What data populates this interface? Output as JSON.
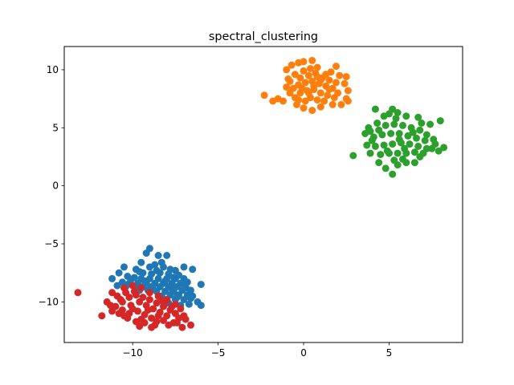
{
  "chart_data": {
    "type": "scatter",
    "title": "spectral_clustering",
    "xlabel": "",
    "ylabel": "",
    "xlim": [
      -14.0,
      9.3
    ],
    "ylim": [
      -13.5,
      12.0
    ],
    "xticks": [
      -10,
      -5,
      0,
      5
    ],
    "yticks": [
      -10,
      -5,
      0,
      5,
      10
    ],
    "xtick_labels": [
      "−10",
      "−5",
      "0",
      "5"
    ],
    "ytick_labels": [
      "−10",
      "−5",
      "0",
      "5",
      "10"
    ],
    "grid": false,
    "legend": "none",
    "series": [
      {
        "color": "#1f77b4",
        "points": [
          [
            -9.0,
            -5.4
          ],
          [
            -9.2,
            -5.8
          ],
          [
            -8.5,
            -6.0
          ],
          [
            -8.0,
            -6.0
          ],
          [
            -8.3,
            -6.6
          ],
          [
            -9.5,
            -6.6
          ],
          [
            -10.5,
            -7.0
          ],
          [
            -7.0,
            -7.0
          ],
          [
            -6.5,
            -7.2
          ],
          [
            -7.5,
            -7.3
          ],
          [
            -10.8,
            -7.5
          ],
          [
            -11.2,
            -8.0
          ],
          [
            -6.0,
            -8.5
          ],
          [
            -6.5,
            -9.5
          ],
          [
            -6.2,
            -10.0
          ],
          [
            -6.0,
            -10.3
          ],
          [
            -9.8,
            -7.2
          ],
          [
            -9.0,
            -7.0
          ],
          [
            -8.7,
            -6.8
          ],
          [
            -8.2,
            -7.0
          ],
          [
            -7.8,
            -7.2
          ],
          [
            -9.4,
            -7.5
          ],
          [
            -8.9,
            -7.6
          ],
          [
            -8.4,
            -7.5
          ],
          [
            -7.9,
            -7.6
          ],
          [
            -7.3,
            -7.7
          ],
          [
            -10.3,
            -7.8
          ],
          [
            -9.9,
            -7.9
          ],
          [
            -9.5,
            -8.0
          ],
          [
            -9.0,
            -8.0
          ],
          [
            -8.5,
            -8.0
          ],
          [
            -8.0,
            -8.0
          ],
          [
            -7.5,
            -8.0
          ],
          [
            -7.0,
            -8.0
          ],
          [
            -6.8,
            -8.3
          ],
          [
            -7.2,
            -8.4
          ],
          [
            -7.7,
            -8.4
          ],
          [
            -8.2,
            -8.4
          ],
          [
            -8.7,
            -8.4
          ],
          [
            -9.2,
            -8.4
          ],
          [
            -9.7,
            -8.4
          ],
          [
            -10.2,
            -8.4
          ],
          [
            -10.6,
            -8.3
          ],
          [
            -10.9,
            -8.6
          ],
          [
            -10.4,
            -8.7
          ],
          [
            -9.9,
            -8.7
          ],
          [
            -9.4,
            -8.7
          ],
          [
            -8.9,
            -8.7
          ],
          [
            -8.4,
            -8.7
          ],
          [
            -7.9,
            -8.7
          ],
          [
            -7.4,
            -8.7
          ],
          [
            -6.9,
            -8.7
          ],
          [
            -6.6,
            -9.0
          ],
          [
            -7.1,
            -9.0
          ],
          [
            -7.6,
            -9.1
          ],
          [
            -8.1,
            -9.1
          ],
          [
            -8.6,
            -9.1
          ],
          [
            -9.1,
            -9.0
          ],
          [
            -9.6,
            -9.0
          ],
          [
            -6.8,
            -9.4
          ],
          [
            -7.3,
            -9.4
          ],
          [
            -7.8,
            -9.4
          ],
          [
            -8.3,
            -9.5
          ],
          [
            -7.0,
            -9.8
          ],
          [
            -7.5,
            -9.8
          ],
          [
            -6.7,
            -10.2
          ],
          [
            -7.2,
            -10.3
          ],
          [
            -8.0,
            -9.8
          ],
          [
            -9.6,
            -7.4
          ],
          [
            -8.6,
            -7.3
          ],
          [
            -7.6,
            -7.9
          ],
          [
            -10.1,
            -8.1
          ],
          [
            -9.3,
            -8.2
          ],
          [
            -8.1,
            -8.2
          ],
          [
            -6.9,
            -8.8
          ],
          [
            -7.7,
            -8.9
          ],
          [
            -8.8,
            -8.9
          ],
          [
            -7.4,
            -9.6
          ],
          [
            -6.6,
            -9.7
          ],
          [
            -7.9,
            -10.1
          ]
        ]
      },
      {
        "color": "#ff7f0e",
        "points": [
          [
            -2.3,
            7.8
          ],
          [
            -1.5,
            7.5
          ],
          [
            -1.2,
            7.3
          ],
          [
            -1.8,
            7.3
          ],
          [
            -1.0,
            8.5
          ],
          [
            -0.8,
            9.0
          ],
          [
            -0.7,
            10.4
          ],
          [
            -0.3,
            10.6
          ],
          [
            -1.0,
            10.0
          ],
          [
            0.0,
            10.7
          ],
          [
            0.5,
            10.8
          ],
          [
            0.8,
            10.2
          ],
          [
            1.3,
            9.6
          ],
          [
            1.9,
            10.3
          ],
          [
            2.5,
            9.4
          ],
          [
            2.4,
            8.8
          ],
          [
            2.6,
            8.2
          ],
          [
            2.5,
            7.5
          ],
          [
            2.2,
            7.0
          ],
          [
            2.6,
            7.3
          ],
          [
            1.7,
            7.0
          ],
          [
            1.0,
            6.8
          ],
          [
            0.5,
            6.5
          ],
          [
            0.0,
            6.7
          ],
          [
            -0.4,
            7.0
          ],
          [
            -0.5,
            7.6
          ],
          [
            -0.2,
            8.0
          ],
          [
            0.2,
            8.2
          ],
          [
            0.6,
            8.3
          ],
          [
            1.0,
            8.0
          ],
          [
            1.4,
            7.8
          ],
          [
            0.4,
            7.6
          ],
          [
            0.8,
            7.4
          ],
          [
            1.2,
            7.3
          ],
          [
            -0.6,
            8.4
          ],
          [
            -0.3,
            8.7
          ],
          [
            0.1,
            8.9
          ],
          [
            0.5,
            9.0
          ],
          [
            0.9,
            8.8
          ],
          [
            1.3,
            8.6
          ],
          [
            1.7,
            8.4
          ],
          [
            -0.8,
            8.0
          ],
          [
            -0.2,
            9.3
          ],
          [
            0.3,
            9.5
          ],
          [
            0.7,
            9.7
          ],
          [
            1.1,
            9.3
          ],
          [
            1.5,
            9.1
          ],
          [
            1.9,
            8.9
          ],
          [
            -0.5,
            9.6
          ],
          [
            0.0,
            9.9
          ],
          [
            0.4,
            10.1
          ],
          [
            1.6,
            9.8
          ],
          [
            2.0,
            8.0
          ],
          [
            1.8,
            7.6
          ],
          [
            0.1,
            7.3
          ],
          [
            -0.3,
            7.4
          ],
          [
            0.6,
            8.6
          ],
          [
            1.0,
            9.1
          ],
          [
            -0.1,
            8.4
          ],
          [
            0.3,
            8.0
          ],
          [
            1.5,
            8.3
          ],
          [
            0.8,
            9.4
          ],
          [
            -0.9,
            9.2
          ],
          [
            2.1,
            9.5
          ]
        ]
      },
      {
        "color": "#2ca02c",
        "points": [
          [
            4.2,
            6.6
          ],
          [
            5.2,
            6.6
          ],
          [
            5.0,
            6.2
          ],
          [
            5.5,
            6.3
          ],
          [
            6.0,
            6.0
          ],
          [
            6.7,
            5.9
          ],
          [
            7.4,
            5.3
          ],
          [
            8.0,
            5.6
          ],
          [
            7.7,
            3.6
          ],
          [
            8.2,
            3.3
          ],
          [
            7.5,
            3.2
          ],
          [
            7.9,
            3.0
          ],
          [
            6.8,
            2.5
          ],
          [
            6.5,
            2.0
          ],
          [
            6.0,
            2.0
          ],
          [
            5.5,
            1.8
          ],
          [
            4.8,
            1.5
          ],
          [
            5.2,
            1.0
          ],
          [
            4.4,
            2.0
          ],
          [
            3.9,
            2.8
          ],
          [
            2.9,
            2.6
          ],
          [
            3.7,
            3.5
          ],
          [
            3.6,
            4.5
          ],
          [
            3.8,
            5.0
          ],
          [
            4.3,
            5.4
          ],
          [
            4.8,
            5.2
          ],
          [
            5.3,
            5.3
          ],
          [
            5.8,
            5.2
          ],
          [
            6.3,
            5.0
          ],
          [
            6.8,
            4.8
          ],
          [
            7.2,
            4.4
          ],
          [
            4.1,
            4.2
          ],
          [
            4.6,
            4.4
          ],
          [
            5.1,
            4.5
          ],
          [
            5.6,
            4.5
          ],
          [
            6.1,
            4.3
          ],
          [
            6.6,
            4.1
          ],
          [
            7.1,
            3.9
          ],
          [
            4.2,
            3.4
          ],
          [
            4.7,
            3.5
          ],
          [
            5.2,
            3.6
          ],
          [
            5.7,
            3.7
          ],
          [
            6.2,
            3.6
          ],
          [
            6.7,
            3.4
          ],
          [
            7.2,
            3.2
          ],
          [
            4.5,
            2.7
          ],
          [
            5.0,
            2.8
          ],
          [
            5.5,
            2.8
          ],
          [
            6.0,
            2.8
          ],
          [
            6.5,
            2.9
          ],
          [
            7.0,
            2.8
          ],
          [
            5.3,
            2.2
          ],
          [
            5.8,
            2.3
          ],
          [
            4.9,
            3.0
          ],
          [
            5.6,
            4.0
          ],
          [
            6.4,
            4.6
          ],
          [
            4.4,
            4.8
          ],
          [
            5.9,
            3.2
          ],
          [
            4.0,
            3.9
          ],
          [
            6.9,
            5.4
          ],
          [
            5.4,
            5.8
          ],
          [
            4.7,
            6.0
          ],
          [
            7.6,
            4.0
          ],
          [
            3.9,
            4.7
          ]
        ]
      },
      {
        "color": "#d62728",
        "points": [
          [
            -13.2,
            -9.2
          ],
          [
            -11.8,
            -11.2
          ],
          [
            -11.2,
            -10.8
          ],
          [
            -11.5,
            -10.0
          ],
          [
            -11.2,
            -9.2
          ],
          [
            -10.5,
            -8.8
          ],
          [
            -10.0,
            -8.6
          ],
          [
            -9.5,
            -8.8
          ],
          [
            -9.0,
            -9.2
          ],
          [
            -8.5,
            -9.5
          ],
          [
            -8.0,
            -9.8
          ],
          [
            -7.5,
            -10.2
          ],
          [
            -7.2,
            -10.6
          ],
          [
            -7.0,
            -11.2
          ],
          [
            -6.9,
            -11.5
          ],
          [
            -6.6,
            -12.0
          ],
          [
            -7.1,
            -12.2
          ],
          [
            -7.6,
            -11.8
          ],
          [
            -8.2,
            -11.6
          ],
          [
            -8.7,
            -12.0
          ],
          [
            -8.9,
            -12.2
          ],
          [
            -9.3,
            -11.8
          ],
          [
            -9.8,
            -11.7
          ],
          [
            -10.3,
            -11.4
          ],
          [
            -10.8,
            -11.0
          ],
          [
            -11.0,
            -10.4
          ],
          [
            -10.6,
            -10.0
          ],
          [
            -10.2,
            -9.6
          ],
          [
            -9.8,
            -9.4
          ],
          [
            -9.4,
            -9.6
          ],
          [
            -9.0,
            -9.8
          ],
          [
            -8.6,
            -10.1
          ],
          [
            -8.2,
            -10.4
          ],
          [
            -7.8,
            -10.7
          ],
          [
            -7.5,
            -11.0
          ],
          [
            -10.9,
            -9.5
          ],
          [
            -10.4,
            -9.2
          ],
          [
            -10.6,
            -10.7
          ],
          [
            -10.1,
            -10.3
          ],
          [
            -9.6,
            -10.0
          ],
          [
            -9.2,
            -10.3
          ],
          [
            -8.8,
            -10.6
          ],
          [
            -8.4,
            -10.9
          ],
          [
            -8.0,
            -11.2
          ],
          [
            -10.2,
            -11.0
          ],
          [
            -9.7,
            -10.8
          ],
          [
            -9.3,
            -11.1
          ],
          [
            -8.9,
            -11.4
          ],
          [
            -8.5,
            -11.2
          ],
          [
            -9.5,
            -11.5
          ],
          [
            -10.0,
            -10.6
          ],
          [
            -9.1,
            -10.7
          ],
          [
            -8.3,
            -9.9
          ],
          [
            -7.7,
            -10.4
          ],
          [
            -7.3,
            -11.4
          ],
          [
            -10.7,
            -9.8
          ],
          [
            -9.9,
            -9.1
          ],
          [
            -11.3,
            -10.3
          ],
          [
            -10.5,
            -11.2
          ],
          [
            -8.6,
            -11.7
          ],
          [
            -7.9,
            -12.0
          ],
          [
            -9.6,
            -12.1
          ],
          [
            -8.1,
            -10.0
          ],
          [
            -7.4,
            -11.8
          ]
        ]
      }
    ]
  }
}
